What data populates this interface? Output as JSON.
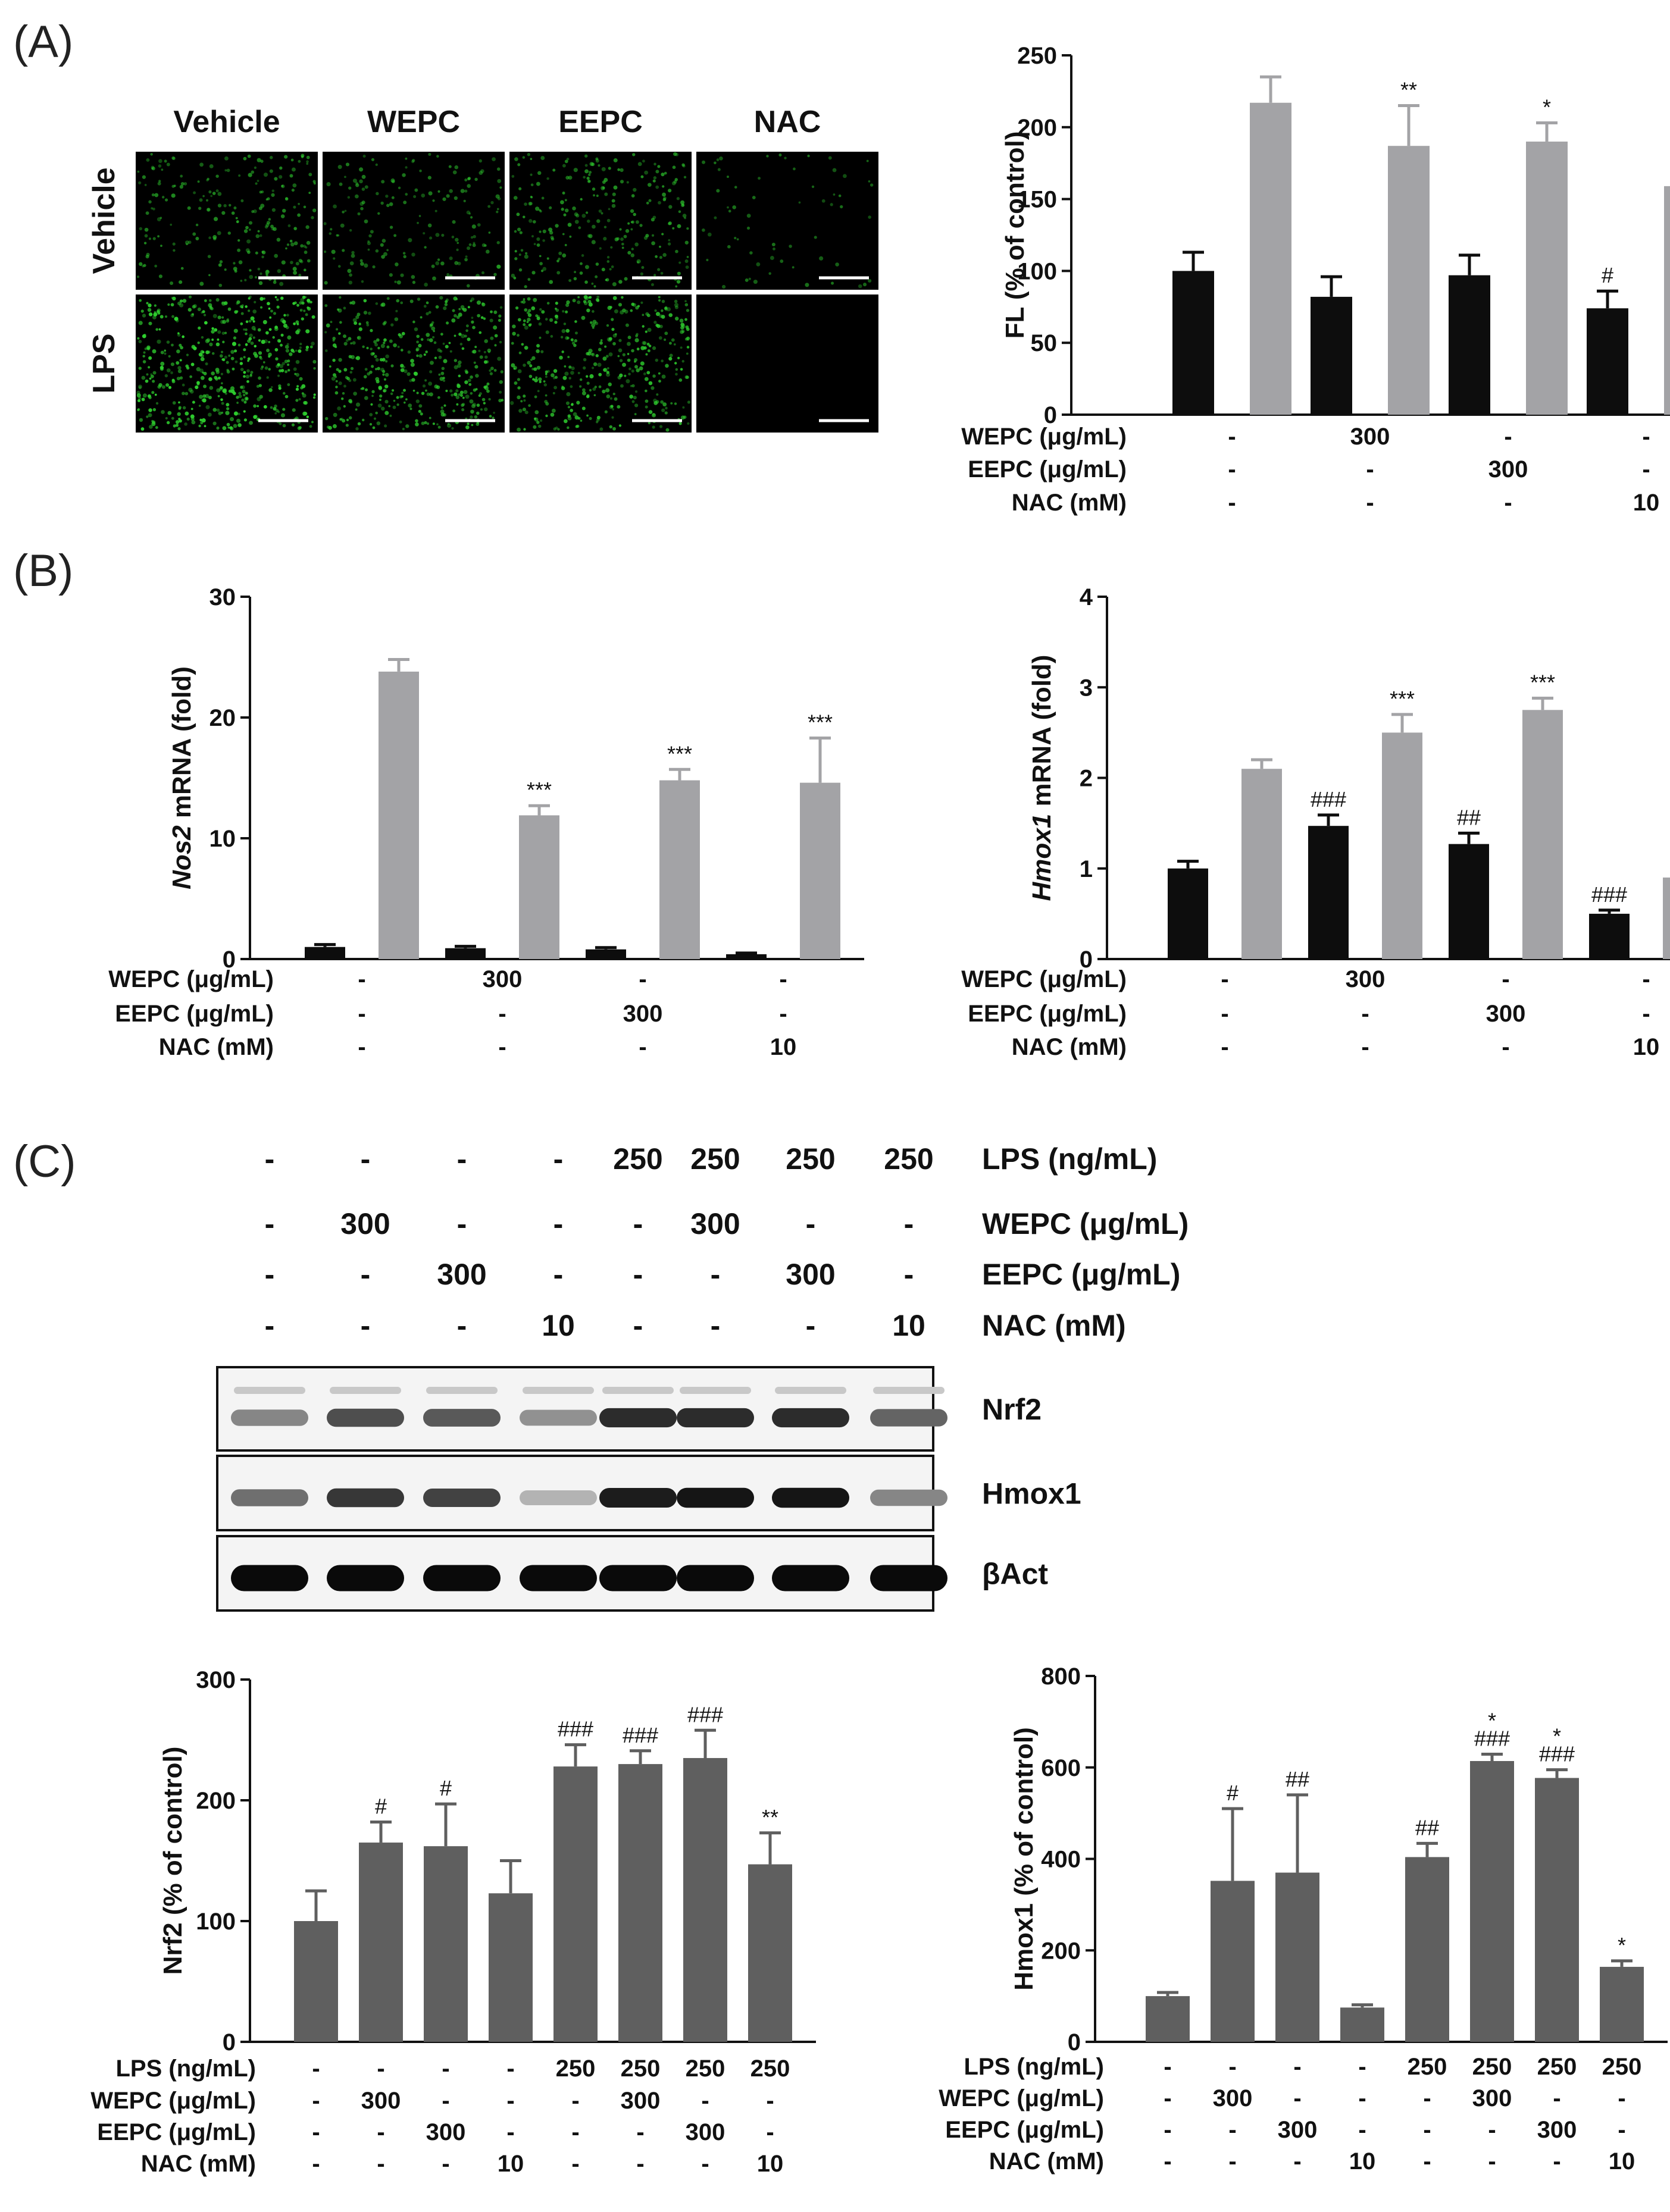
{
  "panels": {
    "A": "(A)",
    "B": "(B)",
    "C": "(C)"
  },
  "colors": {
    "black_bar": "#0d0d0d",
    "gray_bar": "#a3a3a6",
    "dark_bar": "#5f5f5f",
    "green": "#2fd12f"
  },
  "micro": {
    "col_labels": [
      "Vehicle",
      "WEPC",
      "EEPC",
      "NAC"
    ],
    "row_labels": [
      "Vehicle",
      "LPS"
    ],
    "intensity": [
      [
        0.45,
        0.35,
        0.5,
        0.12
      ],
      [
        1.0,
        0.8,
        0.8,
        0.0
      ]
    ]
  },
  "blot": {
    "treatments": {
      "lps": [
        "-",
        "-",
        "-",
        "-",
        "250",
        "250",
        "250",
        "250"
      ],
      "wepc": [
        "-",
        "300",
        "-",
        "-",
        "-",
        "300",
        "-",
        "-"
      ],
      "eepc": [
        "-",
        "-",
        "300",
        "-",
        "-",
        "-",
        "300",
        "-"
      ],
      "nac": [
        "-",
        "-",
        "-",
        "10",
        "-",
        "-",
        "-",
        "10"
      ]
    },
    "row_names": {
      "lps": "LPS (ng/mL)",
      "wepc": "WEPC (μg/mL)",
      "eepc": "EEPC (μg/mL)",
      "nac": "NAC (mM)"
    },
    "bands": [
      {
        "label": "Nrf2",
        "intensity": [
          0.45,
          0.7,
          0.65,
          0.4,
          0.85,
          0.85,
          0.85,
          0.6
        ],
        "faint_upper": true
      },
      {
        "label": "Hmox1",
        "intensity": [
          0.55,
          0.8,
          0.75,
          0.25,
          0.92,
          0.95,
          0.95,
          0.45
        ],
        "faint_upper": false
      },
      {
        "label": "βAct",
        "intensity": [
          1,
          1,
          1,
          1,
          1,
          1,
          1,
          1
        ],
        "faint_upper": false
      }
    ]
  },
  "chart_data": [
    {
      "id": "A_right",
      "type": "bar",
      "ylabel": "FL (% of control)",
      "ylabel_italic": "",
      "ylim": [
        0,
        250
      ],
      "yticks": [
        0,
        50,
        100,
        150,
        200,
        250
      ],
      "series": [
        {
          "values": [
            100,
            82,
            97,
            74
          ],
          "errors": [
            13,
            14,
            14,
            12
          ],
          "color": "#0d0d0d",
          "sig": [
            "",
            "",
            "",
            "#"
          ]
        },
        {
          "values": [
            217,
            187,
            190,
            159
          ],
          "errors": [
            18,
            28,
            13,
            15
          ],
          "color": "#a3a3a6",
          "sig": [
            "",
            "**",
            "*",
            "***"
          ]
        }
      ],
      "treatment_rows": [
        {
          "label": "WEPC (μg/mL)",
          "values": [
            "-",
            "300",
            "-",
            "-"
          ]
        },
        {
          "label": "EEPC (μg/mL)",
          "values": [
            "-",
            "-",
            "300",
            "-"
          ]
        },
        {
          "label": "NAC (mM)",
          "values": [
            "-",
            "-",
            "-",
            "10"
          ]
        }
      ]
    },
    {
      "id": "B_left",
      "type": "bar",
      "ylabel": "mRNA  (fold)",
      "ylabel_italic": "Nos2",
      "ylim": [
        0,
        30
      ],
      "yticks": [
        0,
        10,
        20,
        30
      ],
      "series": [
        {
          "values": [
            1.0,
            0.9,
            0.8,
            0.4
          ],
          "errors": [
            0.2,
            0.15,
            0.15,
            0.1
          ],
          "color": "#0d0d0d",
          "sig": [
            "",
            "",
            "",
            ""
          ]
        },
        {
          "values": [
            23.8,
            11.9,
            14.8,
            14.6
          ],
          "errors": [
            1.0,
            0.8,
            0.9,
            3.7
          ],
          "color": "#a3a3a6",
          "sig": [
            "",
            "***",
            "***",
            "***"
          ]
        }
      ],
      "treatment_rows": [
        {
          "label": "WEPC (μg/mL)",
          "values": [
            "-",
            "300",
            "-",
            "-"
          ]
        },
        {
          "label": "EEPC (μg/mL)",
          "values": [
            "-",
            "-",
            "300",
            "-"
          ]
        },
        {
          "label": "NAC (mM)",
          "values": [
            "-",
            "-",
            "-",
            "10"
          ]
        }
      ]
    },
    {
      "id": "B_right",
      "type": "bar",
      "ylabel": "mRNA  (fold)",
      "ylabel_italic": "Hmox1",
      "ylim": [
        0,
        4
      ],
      "yticks": [
        0,
        1,
        2,
        3,
        4
      ],
      "series": [
        {
          "values": [
            1.0,
            1.47,
            1.27,
            0.5
          ],
          "errors": [
            0.08,
            0.12,
            0.12,
            0.04
          ],
          "color": "#0d0d0d",
          "sig": [
            "",
            "###",
            "##",
            "###"
          ]
        },
        {
          "values": [
            2.1,
            2.5,
            2.75,
            0.9
          ],
          "errors": [
            0.1,
            0.2,
            0.13,
            0.05
          ],
          "color": "#a3a3a6",
          "sig": [
            "",
            "***",
            "***",
            "***"
          ]
        }
      ],
      "treatment_rows": [
        {
          "label": "WEPC (μg/mL)",
          "values": [
            "-",
            "300",
            "-",
            "-"
          ]
        },
        {
          "label": "EEPC (μg/mL)",
          "values": [
            "-",
            "-",
            "300",
            "-"
          ]
        },
        {
          "label": "NAC (mM)",
          "values": [
            "-",
            "-",
            "-",
            "10"
          ]
        }
      ]
    },
    {
      "id": "C_left",
      "type": "bar",
      "ylabel": "Nrf2 (% of control)",
      "ylabel_italic": "",
      "ylim": [
        0,
        300
      ],
      "yticks": [
        0,
        100,
        200,
        300
      ],
      "series": [
        {
          "values": [
            100,
            165,
            162,
            123,
            228,
            230,
            235,
            147
          ],
          "errors": [
            25,
            17,
            35,
            27,
            18,
            11,
            23,
            26
          ],
          "color": "#5f5f5f",
          "sig": [
            [],
            [
              "#"
            ],
            [
              "#"
            ],
            [],
            [
              "###"
            ],
            [
              "###"
            ],
            [
              "###"
            ],
            [
              "**"
            ]
          ]
        }
      ],
      "treatment_rows": [
        {
          "label": "LPS (ng/mL)",
          "values": [
            "-",
            "-",
            "-",
            "-",
            "250",
            "250",
            "250",
            "250"
          ]
        },
        {
          "label": "WEPC (μg/mL)",
          "values": [
            "-",
            "300",
            "-",
            "-",
            "-",
            "300",
            "-",
            "-"
          ]
        },
        {
          "label": "EEPC (μg/mL)",
          "values": [
            "-",
            "-",
            "300",
            "-",
            "-",
            "-",
            "300",
            "-"
          ]
        },
        {
          "label": "NAC (mM)",
          "values": [
            "-",
            "-",
            "-",
            "10",
            "-",
            "-",
            "-",
            "10"
          ]
        }
      ]
    },
    {
      "id": "C_right",
      "type": "bar",
      "ylabel": "Hmox1 (% of control)",
      "ylabel_italic": "",
      "ylim": [
        0,
        800
      ],
      "yticks": [
        0,
        200,
        400,
        600,
        800
      ],
      "series": [
        {
          "values": [
            100,
            352,
            370,
            75,
            404,
            614,
            577,
            164
          ],
          "errors": [
            8,
            158,
            170,
            6,
            30,
            15,
            18,
            13
          ],
          "color": "#5f5f5f",
          "sig": [
            [],
            [
              "#"
            ],
            [
              "##"
            ],
            [],
            [
              "##"
            ],
            [
              "*",
              "###"
            ],
            [
              "*",
              "###"
            ],
            [
              "*"
            ]
          ]
        }
      ],
      "treatment_rows": [
        {
          "label": "LPS (ng/mL)",
          "values": [
            "-",
            "-",
            "-",
            "-",
            "250",
            "250",
            "250",
            "250"
          ]
        },
        {
          "label": "WEPC (μg/mL)",
          "values": [
            "-",
            "300",
            "-",
            "-",
            "-",
            "300",
            "-",
            "-"
          ]
        },
        {
          "label": "EEPC (μg/mL)",
          "values": [
            "-",
            "-",
            "300",
            "-",
            "-",
            "-",
            "300",
            "-"
          ]
        },
        {
          "label": "NAC (mM)",
          "values": [
            "-",
            "-",
            "-",
            "10",
            "-",
            "-",
            "-",
            "10"
          ]
        }
      ]
    }
  ]
}
